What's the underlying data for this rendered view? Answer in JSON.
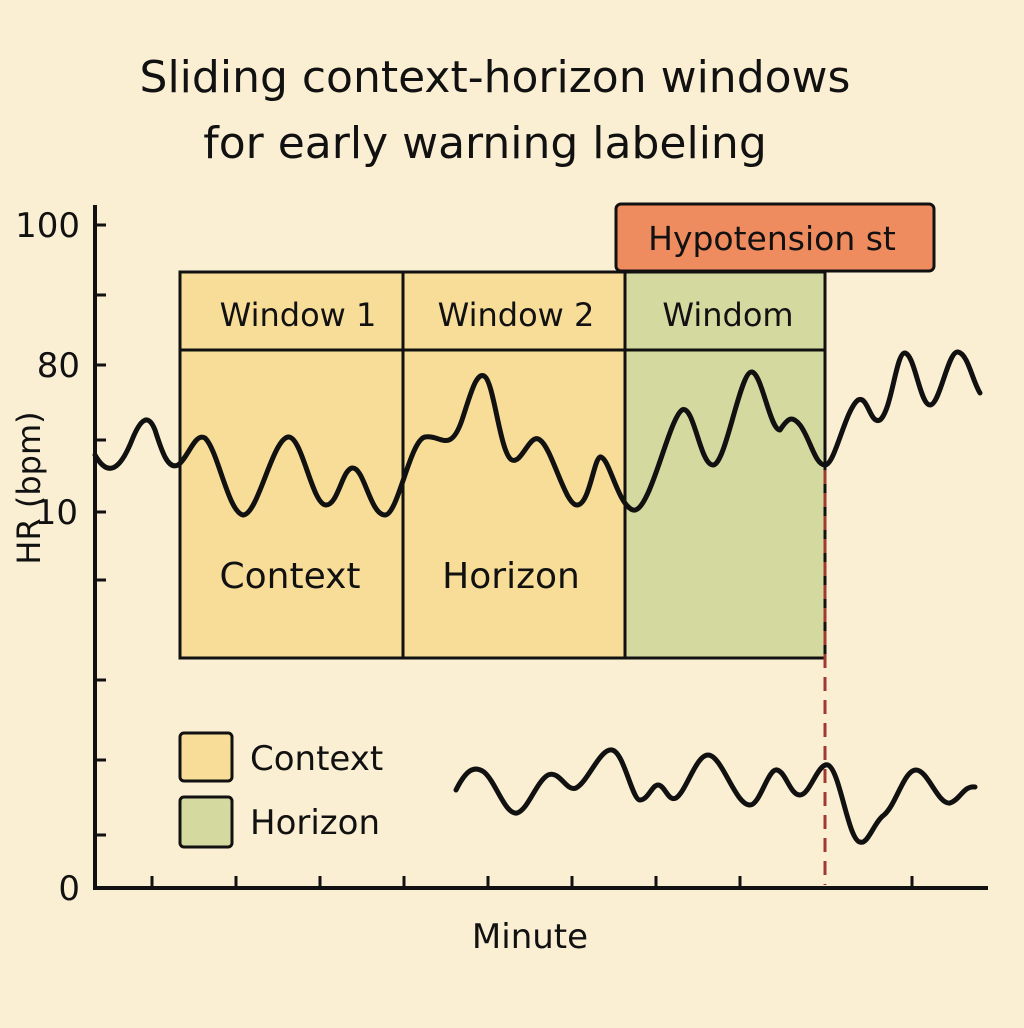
{
  "title": {
    "line1": "Sliding context-horizon windows",
    "line2": "for early warning labeling"
  },
  "axes": {
    "y_label": "HR (bpm)",
    "x_label": "Minute",
    "y_ticks": [
      "100",
      "80",
      "10",
      "0"
    ]
  },
  "windows": [
    {
      "header": "Window 1",
      "body": "Context",
      "role": "context"
    },
    {
      "header": "Window 2",
      "body": "Horizon",
      "role": "context"
    },
    {
      "header": "Windom",
      "body": "",
      "role": "horizon"
    }
  ],
  "event": {
    "label": "Hypotension st",
    "color": "#ee8b5f"
  },
  "legend": [
    {
      "label": "Context",
      "color": "#f8dd98"
    },
    {
      "label": "Horizon",
      "color": "#d4d9a0"
    }
  ],
  "colors": {
    "background": "#fbefd3",
    "context_fill": "#f8dd98",
    "horizon_fill": "#d4d9a0",
    "event_line": "#a03a30",
    "ink": "#111111"
  }
}
